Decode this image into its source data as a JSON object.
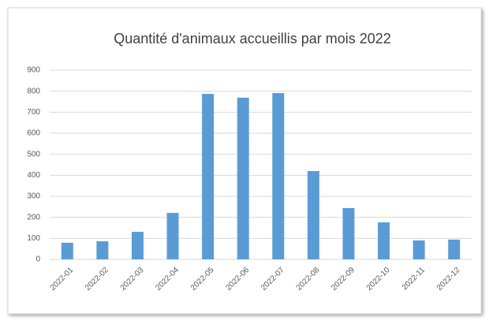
{
  "chart_data": {
    "type": "bar",
    "title": "Quantité d'animaux accueillis par mois 2022",
    "categories": [
      "2022-01",
      "2022-02",
      "2022-03",
      "2022-04",
      "2022-05",
      "2022-06",
      "2022-07",
      "2022-08",
      "2022-09",
      "2022-10",
      "2022-11",
      "2022-12"
    ],
    "values": [
      79,
      86,
      131,
      221,
      787,
      769,
      791,
      420,
      244,
      176,
      90,
      94
    ],
    "color": "#5b9bd5",
    "ylim": [
      0,
      900
    ],
    "yticks": [
      0,
      100,
      200,
      300,
      400,
      500,
      600,
      700,
      800,
      900
    ],
    "grid": true
  }
}
